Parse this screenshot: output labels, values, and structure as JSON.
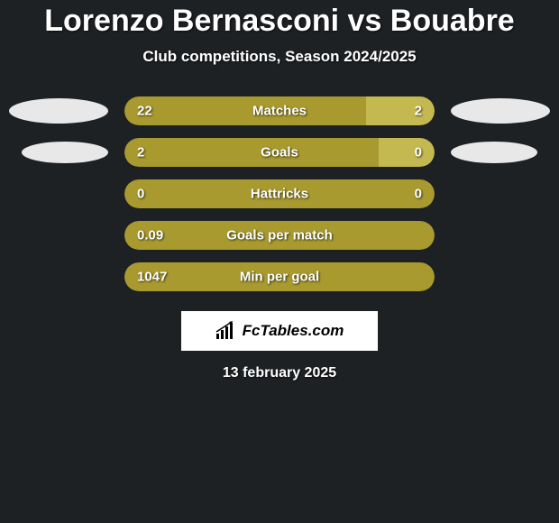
{
  "title": "Lorenzo Bernasconi vs Bouabre",
  "subtitle": "Club competitions, Season 2024/2025",
  "date": "13 february 2025",
  "logo_text": "FcTables.com",
  "colors": {
    "background": "#1e2124",
    "bar_primary": "#a89a2f",
    "bar_secondary": "#c4b951",
    "ellipse": "#e8e8e8",
    "text": "#ffffff",
    "logo_bg": "#ffffff",
    "logo_text": "#000000"
  },
  "stats": [
    {
      "label": "Matches",
      "left_value": "22",
      "right_value": "2",
      "left_pct": 78,
      "right_pct": 22,
      "left_color": "#a89a2f",
      "right_color": "#c4b951",
      "show_ellipses": true
    },
    {
      "label": "Goals",
      "left_value": "2",
      "right_value": "0",
      "left_pct": 82,
      "right_pct": 18,
      "left_color": "#a89a2f",
      "right_color": "#c4b951",
      "show_ellipses": true,
      "ellipse_inset": true
    },
    {
      "label": "Hattricks",
      "left_value": "0",
      "right_value": "0",
      "left_pct": 100,
      "right_pct": 0,
      "left_color": "#a89a2f",
      "right_color": "#c4b951",
      "show_ellipses": false
    },
    {
      "label": "Goals per match",
      "left_value": "0.09",
      "right_value": "",
      "left_pct": 100,
      "right_pct": 0,
      "left_color": "#a89a2f",
      "right_color": "#c4b951",
      "show_ellipses": false
    },
    {
      "label": "Min per goal",
      "left_value": "1047",
      "right_value": "",
      "left_pct": 100,
      "right_pct": 0,
      "left_color": "#a89a2f",
      "right_color": "#c4b951",
      "show_ellipses": false
    }
  ]
}
